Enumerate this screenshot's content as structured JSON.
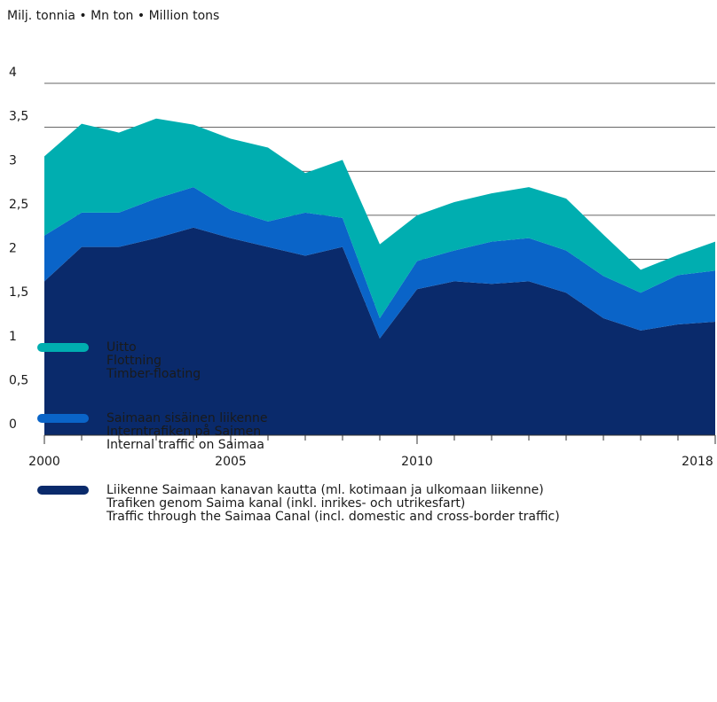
{
  "chart_data": {
    "type": "stacked_area",
    "subtitle": "Milj. tonnia • Mn ton • Million tons",
    "x": [
      2000,
      2001,
      2002,
      2003,
      2004,
      2005,
      2006,
      2007,
      2008,
      2009,
      2010,
      2011,
      2012,
      2013,
      2014,
      2015,
      2016,
      2017,
      2018
    ],
    "xlim": [
      2000,
      2018
    ],
    "xticks": [
      2000,
      2005,
      2010,
      2018
    ],
    "ylim": [
      0,
      4
    ],
    "yticks": [
      0,
      {
        "value": 0.5,
        "label": "0,5"
      },
      1,
      {
        "value": 1.5,
        "label": "1,5"
      },
      2,
      {
        "value": 2.5,
        "label": "2,5"
      },
      3,
      {
        "value": 3.5,
        "label": "3,5"
      },
      4
    ],
    "grid": true,
    "series": [
      {
        "name": "Uitto",
        "name_sv": "Flottning",
        "name_en": "Timber-floating",
        "color": "#00aeb0",
        "values": [
          0.9,
          1.01,
          0.91,
          0.91,
          0.71,
          0.81,
          0.84,
          0.45,
          0.66,
          0.84,
          0.52,
          0.55,
          0.55,
          0.58,
          0.59,
          0.47,
          0.26,
          0.23,
          0.33
        ]
      },
      {
        "name": "Saimaan sisäinen liikenne",
        "name_sv": "Interntrafiken på Saimen",
        "name_en": "Internal traffic on Saimaa",
        "color": "#0a64c8",
        "values": [
          0.52,
          0.39,
          0.39,
          0.45,
          0.46,
          0.32,
          0.29,
          0.49,
          0.33,
          0.23,
          0.32,
          0.35,
          0.48,
          0.49,
          0.48,
          0.48,
          0.43,
          0.56,
          0.58
        ]
      },
      {
        "name": "Liikenne Saimaan kanavan kautta (ml. kotimaan ja ulkomaan liikenne)",
        "name_sv": "Trafiken genom Saima kanal (inkl. inrikes- och utrikesfart)",
        "name_en": "Traffic through the Saimaa Canal (incl. domestic and cross-border traffic)",
        "color": "#0a2a6b",
        "values": [
          1.75,
          2.14,
          2.14,
          2.24,
          2.36,
          2.24,
          2.14,
          2.04,
          2.14,
          1.1,
          1.66,
          1.75,
          1.72,
          1.75,
          1.62,
          1.33,
          1.19,
          1.26,
          1.29
        ]
      }
    ]
  }
}
